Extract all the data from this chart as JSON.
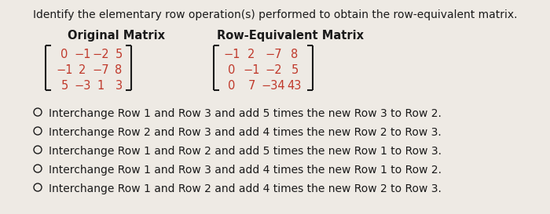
{
  "title": "Identify the elementary row operation(s) performed to obtain the row-equivalent matrix.",
  "orig_label": "Original Matrix",
  "equiv_label": "Row-Equivalent Matrix",
  "orig_matrix": [
    [
      "0",
      "−1",
      "−2",
      "5"
    ],
    [
      "−1",
      "2",
      "−7",
      "8"
    ],
    [
      "5",
      "−3",
      "1",
      "3"
    ]
  ],
  "equiv_matrix": [
    [
      "−1",
      "2",
      "−7",
      "8"
    ],
    [
      "0",
      "−1",
      "−2",
      "5"
    ],
    [
      "0",
      "7",
      "−34",
      "43"
    ]
  ],
  "options": [
    "Interchange Row 1 and Row 3 and add 5 times the new Row 3 to Row 2.",
    "Interchange Row 2 and Row 3 and add 4 times the new Row 2 to Row 3.",
    "Interchange Row 1 and Row 2 and add 5 times the new Row 1 to Row 3.",
    "Interchange Row 1 and Row 3 and add 4 times the new Row 1 to Row 2.",
    "Interchange Row 1 and Row 2 and add 4 times the new Row 2 to Row 3."
  ],
  "bg_color": "#eeeae4",
  "text_color": "#1a1a1a",
  "matrix_color": "#c0392b",
  "title_fontsize": 10.0,
  "label_fontsize": 10.5,
  "matrix_fontsize": 10.5,
  "option_fontsize": 10.0
}
